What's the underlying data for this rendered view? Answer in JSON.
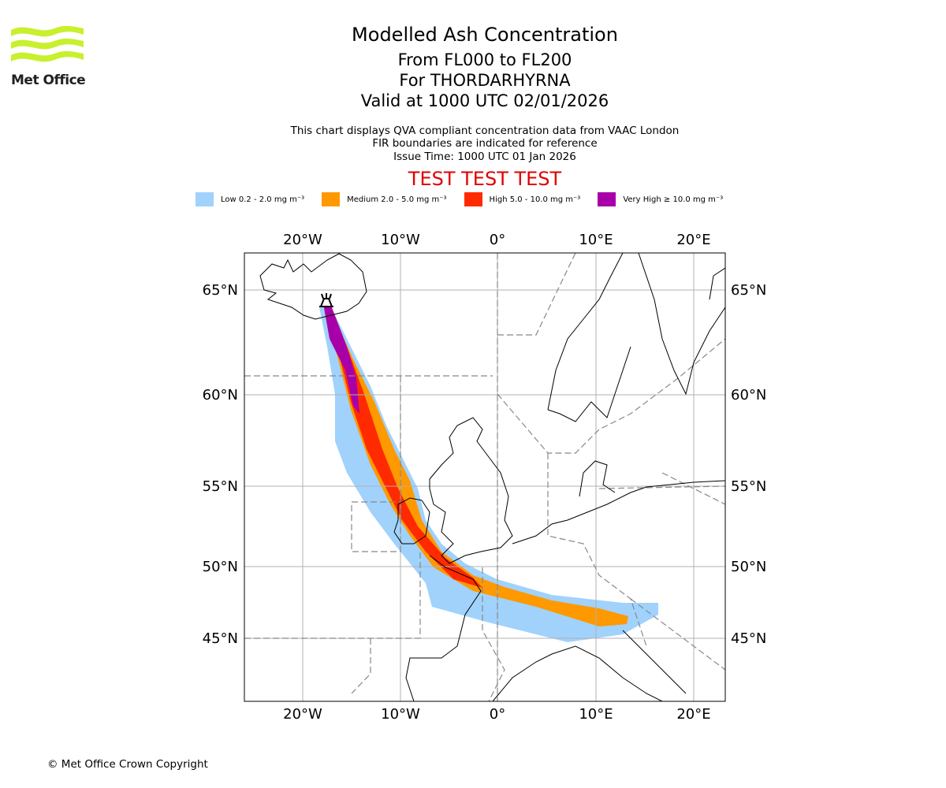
{
  "logo": {
    "text": "Met Office",
    "accent": "#c8f02d"
  },
  "title": {
    "main": "Modelled Ash Concentration",
    "levels": "From FL000 to FL200",
    "volcano": "For THORDARHYRNA",
    "valid": "Valid at 1000 UTC 02/01/2026"
  },
  "subtitle": {
    "line1": "This chart displays QVA compliant concentration data from VAAC London",
    "line2": "FIR boundaries are indicated for reference",
    "line3": "Issue Time: 1000 UTC 01 Jan 2026"
  },
  "test_banner": "TEST TEST TEST",
  "legend": [
    {
      "label": "Low 0.2 - 2.0 mg m⁻³",
      "color": "#a0d2fc"
    },
    {
      "label": "Medium 2.0 - 5.0 mg m⁻³",
      "color": "#ff9900"
    },
    {
      "label": "High 5.0 - 10.0 mg m⁻³",
      "color": "#ff2a00"
    },
    {
      "label": "Very High ≥ 10.0 mg m⁻³",
      "color": "#a800a8"
    }
  ],
  "map": {
    "lon_labels": [
      "20°W",
      "10°W",
      "0°",
      "10°E",
      "20°E"
    ],
    "lat_labels": [
      "65°N",
      "60°N",
      "55°N",
      "50°N",
      "45°N"
    ],
    "volcano_icon": "volcano-icon"
  },
  "copyright": "© Met Office Crown Copyright"
}
